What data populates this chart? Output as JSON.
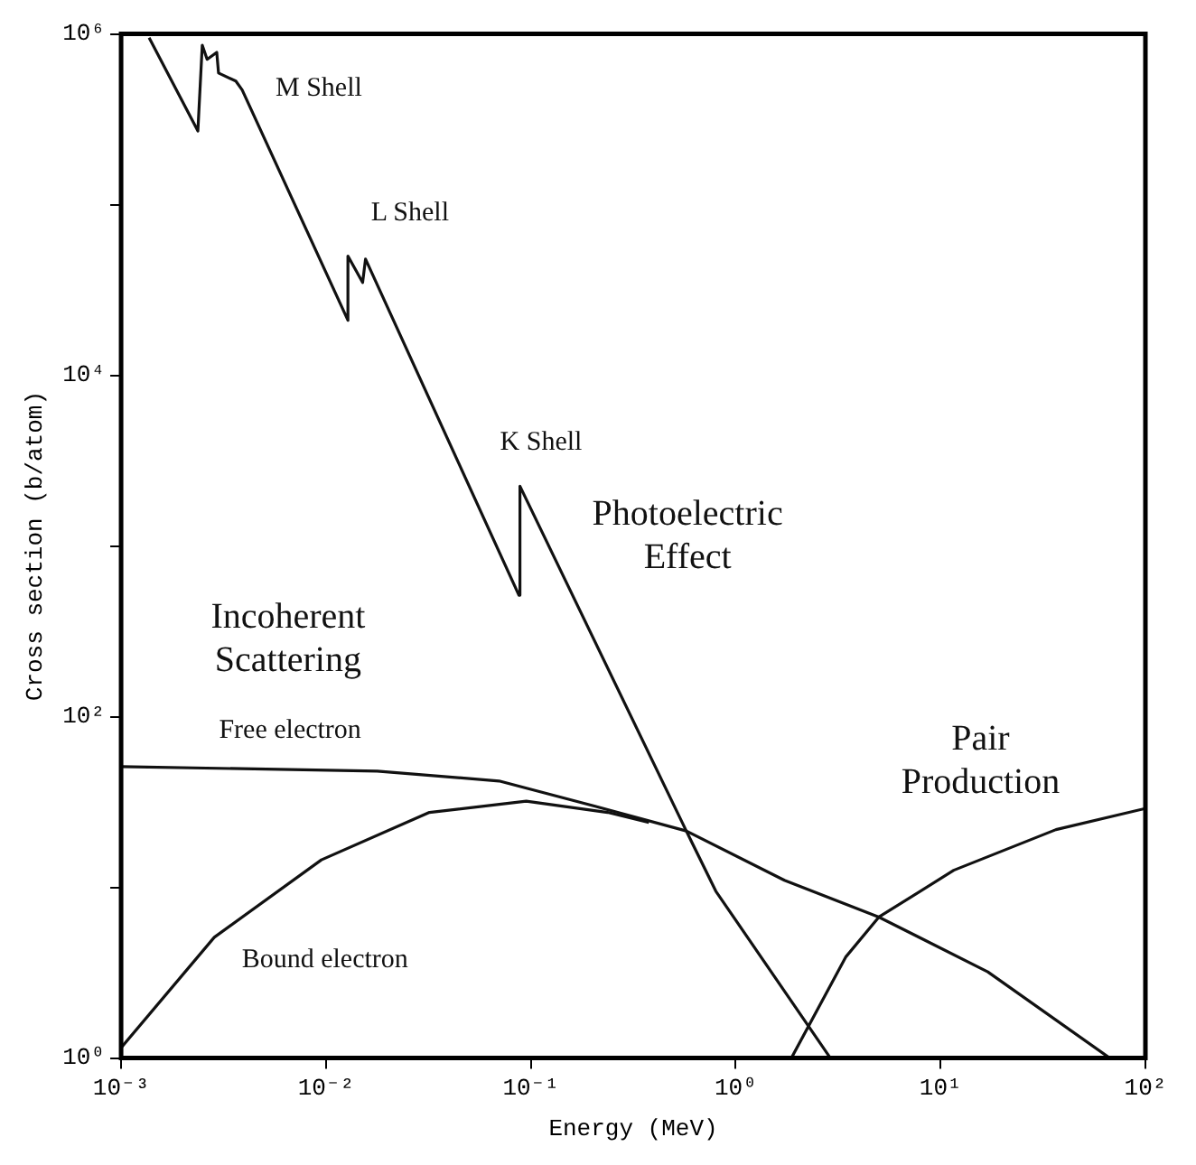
{
  "chart_data": {
    "type": "line",
    "xlabel": "Energy (MeV)",
    "ylabel": "Cross section (b/atom)",
    "log": "xy",
    "grid": false,
    "legend": false,
    "marker": "none",
    "line_style": "solid",
    "xlim": [
      0.001,
      100
    ],
    "ylim": [
      1,
      1000000
    ],
    "xticks": [
      {
        "value": 0.001,
        "label": "10⁻³"
      },
      {
        "value": 0.01,
        "label": "10⁻²"
      },
      {
        "value": 0.1,
        "label": "10⁻¹"
      },
      {
        "value": 1,
        "label": "10⁰"
      },
      {
        "value": 10,
        "label": "10¹"
      },
      {
        "value": 100,
        "label": "10²"
      }
    ],
    "yticks": [
      {
        "value": 1,
        "label": "10⁰"
      },
      {
        "value": 10,
        "label": null
      },
      {
        "value": 100,
        "label": "10²"
      },
      {
        "value": 1000,
        "label": null
      },
      {
        "value": 10000,
        "label": "10⁴"
      },
      {
        "value": 100000,
        "label": null
      },
      {
        "value": 1000000,
        "label": "10⁶"
      }
    ],
    "series": [
      {
        "color": "#111111",
        "x": [
          0.00137,
          0.00237,
          0.00249,
          0.00263,
          0.00293,
          0.00299,
          0.00363,
          0.0039,
          0.0128,
          0.0128,
          0.0151,
          0.0156,
          0.0875,
          0.0885,
          0.574,
          0.8,
          2.9
        ],
        "values": [
          950000,
          270000,
          860000,
          710000,
          780000,
          590000,
          530000,
          470000,
          21000,
          50000,
          35000,
          48000,
          515,
          2240,
          21.4,
          9.5,
          1
        ]
      },
      {
        "color": "#111111",
        "x": [
          0.001,
          0.0178,
          0.07,
          0.204,
          0.574,
          1.73,
          5,
          17,
          67
        ],
        "values": [
          51,
          48,
          42,
          30,
          21.4,
          11,
          6.7,
          3.2,
          1
        ]
      },
      {
        "color": "#111111",
        "x": [
          0.001,
          0.00285,
          0.0095,
          0.032,
          0.095,
          0.237,
          0.377
        ],
        "values": [
          1.15,
          5.1,
          14.5,
          27.5,
          32,
          27.5,
          24
        ]
      },
      {
        "color": "#111111",
        "x": [
          1.87,
          3.44,
          5,
          11.6,
          36.6,
          100
        ],
        "values": [
          1,
          3.9,
          6.7,
          12.6,
          21.8,
          29
        ]
      }
    ],
    "annotations": [
      "M Shell",
      "L Shell",
      "K Shell",
      "Photoelectric\nEffect",
      "Incoherent\nScattering",
      "Free electron",
      "Bound electron",
      "Pair\nProduction"
    ]
  }
}
